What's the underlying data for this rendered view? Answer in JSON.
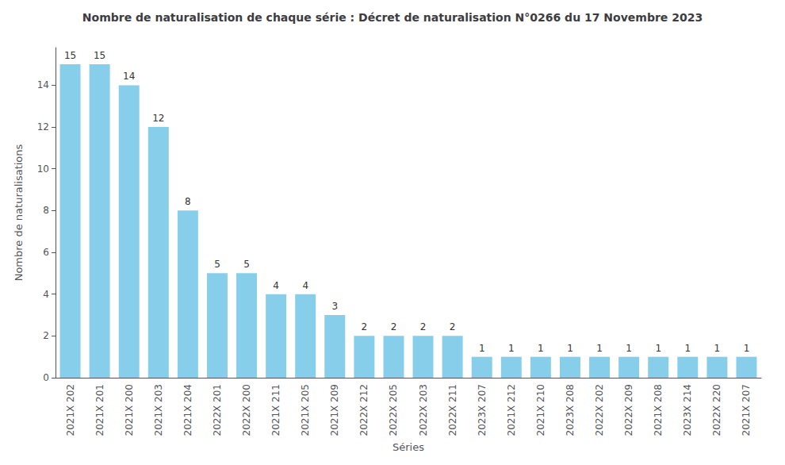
{
  "chart_data": {
    "type": "bar",
    "title": "Nombre de naturalisation de chaque série : Décret de naturalisation N°0266 du 17 Novembre 2023",
    "xlabel": "Séries",
    "ylabel": "Nombre de naturalisations",
    "categories": [
      "2021X 202",
      "2021X 201",
      "2021X 200",
      "2021X 203",
      "2021X 204",
      "2022X 201",
      "2022X 200",
      "2021X 211",
      "2021X 205",
      "2021X 209",
      "2022X 212",
      "2022X 205",
      "2022X 203",
      "2022X 211",
      "2023X 207",
      "2021X 212",
      "2021X 210",
      "2023X 208",
      "2022X 202",
      "2022X 209",
      "2021X 208",
      "2023X 214",
      "2022X 220",
      "2021X 207"
    ],
    "values": [
      15,
      15,
      14,
      12,
      8,
      5,
      5,
      4,
      4,
      3,
      2,
      2,
      2,
      2,
      1,
      1,
      1,
      1,
      1,
      1,
      1,
      1,
      1,
      1
    ],
    "color": "#87CEEB",
    "ylim": [
      0,
      15.8
    ],
    "yticks": [
      0,
      2,
      4,
      6,
      8,
      10,
      12,
      14
    ],
    "grid": false,
    "data_labels": true
  }
}
